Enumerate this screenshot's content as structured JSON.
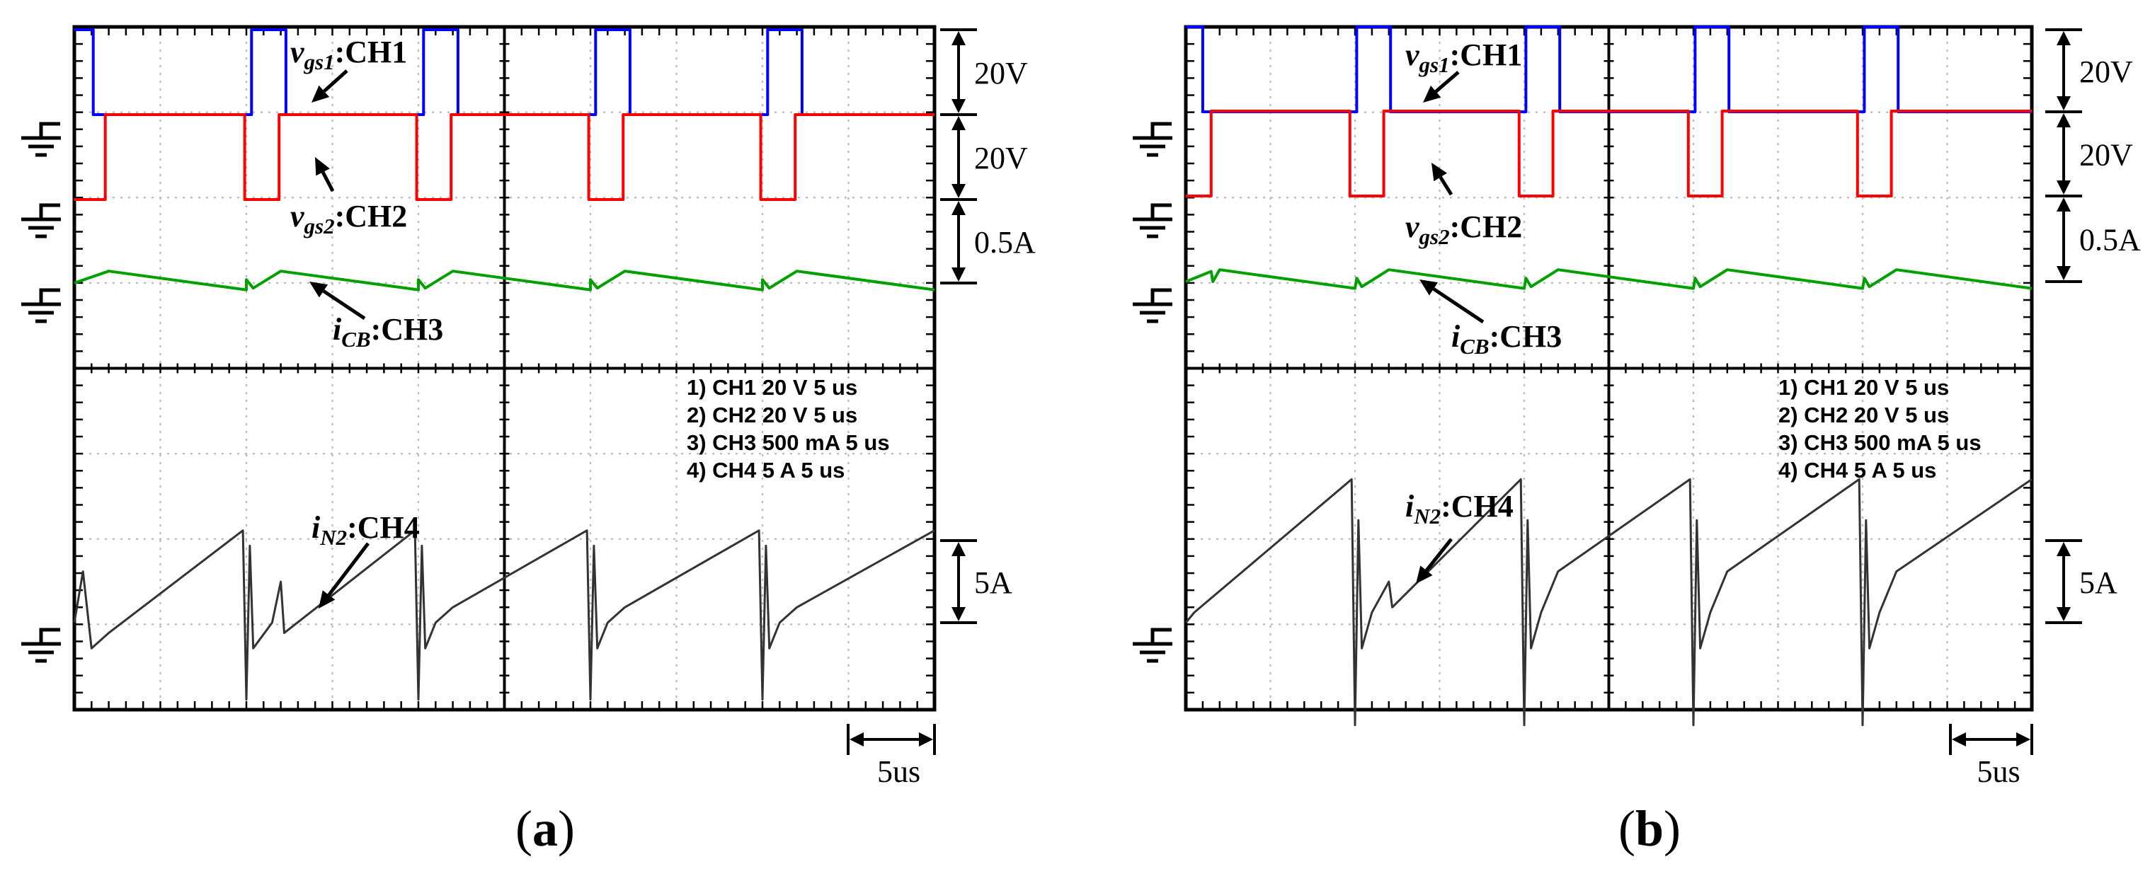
{
  "chart_data": [
    {
      "type": "line",
      "panel_label": "(a)",
      "bold_letter": "a",
      "grid": true,
      "time_per_div": "5us",
      "x_unit": "us",
      "xlim": [
        0,
        50
      ],
      "settings": [
        {
          "n": "1)",
          "ch": "CH1",
          "scale": "20 V",
          "time": "5 us"
        },
        {
          "n": "2)",
          "ch": "CH2",
          "scale": "20 V",
          "time": "5 us"
        },
        {
          "n": "3)",
          "ch": "CH3",
          "scale": "500 mA",
          "time": "5 us"
        },
        {
          "n": "4)",
          "ch": "CH4",
          "scale": "5 A",
          "time": "5 us"
        }
      ],
      "scale_bars": [
        "20V",
        "20V",
        "0.5A",
        "5A"
      ],
      "time_bar_label": "5us",
      "series": [
        {
          "name": "CH1",
          "label": "v",
          "sub": "gs1",
          "suffix": ":CH1",
          "color": "#0000ff",
          "ylim": [
            0,
            20
          ],
          "x": [
            0,
            1.1,
            1.1,
            10.3,
            10.3,
            12.3,
            12.3,
            20.3,
            20.3,
            22.3,
            22.3,
            30.3,
            30.3,
            32.3,
            32.3,
            40.3,
            40.3,
            42.3,
            42.3,
            50
          ],
          "y": [
            20,
            20,
            0,
            0,
            20,
            20,
            0,
            0,
            20,
            20,
            0,
            0,
            20,
            20,
            0,
            0,
            20,
            20,
            0,
            0
          ]
        },
        {
          "name": "CH2",
          "label": "v",
          "sub": "gs2",
          "suffix": ":CH2",
          "color": "#ff0000",
          "ylim": [
            0,
            20
          ],
          "x": [
            0,
            1.8,
            1.8,
            9.9,
            9.9,
            11.9,
            11.9,
            19.9,
            19.9,
            21.9,
            21.9,
            29.9,
            29.9,
            31.9,
            31.9,
            39.9,
            39.9,
            41.9,
            41.9,
            50
          ],
          "y": [
            0,
            0,
            20,
            20,
            0,
            0,
            20,
            20,
            0,
            0,
            20,
            20,
            0,
            0,
            20,
            20,
            0,
            0,
            20,
            20
          ]
        },
        {
          "name": "CH3",
          "label": "i",
          "sub": "CB",
          "suffix": ":CH3",
          "color": "#00a000",
          "ylim": [
            -0.5,
            0.5
          ],
          "x": [
            0,
            2,
            10,
            10,
            10.4,
            12,
            20,
            20,
            20.4,
            22,
            30,
            30,
            30.4,
            32,
            40,
            40,
            40.4,
            42,
            50
          ],
          "y": [
            0.0,
            0.14,
            -0.08,
            0.04,
            -0.06,
            0.14,
            -0.08,
            0.04,
            -0.06,
            0.14,
            -0.08,
            0.04,
            -0.06,
            0.14,
            -0.08,
            0.04,
            -0.06,
            0.14,
            -0.08
          ]
        },
        {
          "name": "CH4",
          "label": "i",
          "sub": "N2",
          "suffix": ":CH4",
          "color": "#333333",
          "ylim": [
            -3,
            5
          ],
          "x": [
            0,
            0.5,
            1,
            2,
            9.8,
            10,
            10.2,
            10.4,
            11.5,
            12,
            12.2,
            19.8,
            20,
            20.2,
            20.4,
            21,
            22,
            29.8,
            30,
            30.2,
            30.4,
            31,
            32,
            39.8,
            40,
            40.2,
            40.4,
            41,
            42,
            50
          ],
          "y": [
            0,
            1,
            -0.5,
            -0.2,
            1.8,
            -1.5,
            1.5,
            -0.5,
            0.0,
            0.8,
            -0.2,
            1.8,
            -1.5,
            1.5,
            -0.5,
            0.0,
            0.3,
            1.8,
            -1.5,
            1.5,
            -0.5,
            0.0,
            0.3,
            1.8,
            -1.5,
            1.5,
            -0.5,
            0.0,
            0.3,
            1.8
          ]
        }
      ]
    },
    {
      "type": "line",
      "panel_label": "(b)",
      "bold_letter": "b",
      "grid": true,
      "time_per_div": "5us",
      "x_unit": "us",
      "xlim": [
        0,
        50
      ],
      "settings": [
        {
          "n": "1)",
          "ch": "CH1",
          "scale": "20 V",
          "time": "5 us"
        },
        {
          "n": "2)",
          "ch": "CH2",
          "scale": "20 V",
          "time": "5 us"
        },
        {
          "n": "3)",
          "ch": "CH3",
          "scale": "500 mA",
          "time": "5 us"
        },
        {
          "n": "4)",
          "ch": "CH4",
          "scale": "5 A",
          "time": "5 us"
        }
      ],
      "scale_bars": [
        "20V",
        "20V",
        "0.5A",
        "5A"
      ],
      "time_bar_label": "5us",
      "series": [
        {
          "name": "CH1",
          "label": "v",
          "sub": "gs1",
          "suffix": ":CH1",
          "color": "#0000ff",
          "ylim": [
            0,
            20
          ],
          "x": [
            0,
            1.0,
            1.0,
            10.1,
            10.1,
            12.1,
            12.1,
            20.1,
            20.1,
            22.1,
            22.1,
            30.1,
            30.1,
            32.1,
            32.1,
            40.1,
            40.1,
            42.1,
            42.1,
            50
          ],
          "y": [
            20,
            20,
            0,
            0,
            20,
            20,
            0,
            0,
            20,
            20,
            0,
            0,
            20,
            20,
            0,
            0,
            20,
            20,
            0,
            0
          ]
        },
        {
          "name": "CH2",
          "label": "v",
          "sub": "gs2",
          "suffix": ":CH2",
          "color": "#ff0000",
          "ylim": [
            0,
            20
          ],
          "x": [
            0,
            1.5,
            1.5,
            9.7,
            9.7,
            11.7,
            11.7,
            19.7,
            19.7,
            21.7,
            21.7,
            29.7,
            29.7,
            31.7,
            31.7,
            39.7,
            39.7,
            41.7,
            41.7,
            50
          ],
          "y": [
            0,
            0,
            20,
            20,
            0,
            0,
            20,
            20,
            0,
            0,
            20,
            20,
            0,
            0,
            20,
            20,
            0,
            0,
            20,
            20
          ]
        },
        {
          "name": "CH3",
          "label": "i",
          "sub": "CB",
          "suffix": ":CH3",
          "color": "#00a000",
          "ylim": [
            -0.5,
            0.5
          ],
          "x": [
            0,
            1.5,
            1.6,
            2,
            10,
            10.1,
            10.4,
            12,
            20,
            20.1,
            20.4,
            22,
            30,
            30.1,
            30.4,
            32,
            40,
            40.1,
            40.4,
            42,
            50
          ],
          "y": [
            0.0,
            0.12,
            0.0,
            0.14,
            -0.08,
            0.04,
            -0.06,
            0.14,
            -0.08,
            0.04,
            -0.06,
            0.14,
            -0.08,
            0.04,
            -0.06,
            0.14,
            -0.08,
            0.04,
            -0.06,
            0.14,
            -0.08
          ]
        },
        {
          "name": "CH4",
          "label": "i",
          "sub": "N2",
          "suffix": ":CH4",
          "color": "#333333",
          "ylim": [
            -3,
            5
          ],
          "x": [
            0,
            0.5,
            9.8,
            10,
            10.2,
            10.4,
            11,
            12,
            12.2,
            19.8,
            20,
            20.2,
            20.4,
            21,
            22,
            29.8,
            30,
            30.2,
            30.4,
            31,
            32,
            39.8,
            40,
            40.2,
            40.4,
            41,
            42,
            50
          ],
          "y": [
            0.0,
            0.2,
            2.8,
            -2.0,
            2.0,
            -0.5,
            0.2,
            0.8,
            0.3,
            2.8,
            -2.0,
            2.0,
            -0.5,
            0.2,
            1.0,
            2.8,
            -2.0,
            2.0,
            -0.5,
            0.2,
            1.0,
            2.8,
            -2.0,
            2.0,
            -0.5,
            0.2,
            1.0,
            2.8
          ]
        }
      ]
    }
  ]
}
